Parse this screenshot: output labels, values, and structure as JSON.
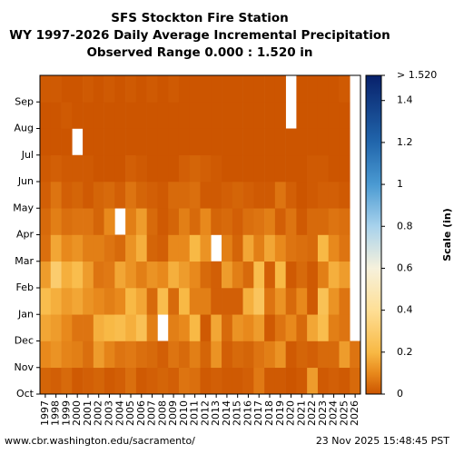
{
  "chart_data": {
    "type": "heatmap",
    "title": [
      "SFS Stockton Fire Station",
      "WY 1997-2026 Daily Average Incremental Precipitation",
      "Observed Range 0.000 : 1.520 in"
    ],
    "x": [
      1997,
      1998,
      1999,
      2000,
      2001,
      2002,
      2003,
      2004,
      2005,
      2006,
      2007,
      2008,
      2009,
      2010,
      2011,
      2012,
      2013,
      2014,
      2015,
      2016,
      2017,
      2018,
      2019,
      2020,
      2021,
      2022,
      2023,
      2024,
      2025,
      2026
    ],
    "categories": [
      "Oct",
      "Nov",
      "Dec",
      "Jan",
      "Feb",
      "Mar",
      "Apr",
      "May",
      "Jun",
      "Jul",
      "Aug",
      "Sep"
    ],
    "values": [
      [
        0.03,
        0.1,
        0.16,
        0.22,
        0.14,
        0.05,
        0.04,
        0.02,
        0.01,
        0.0,
        0.0,
        0.01
      ],
      [
        0.02,
        0.12,
        0.14,
        0.18,
        0.3,
        0.16,
        0.08,
        0.06,
        0.02,
        0.0,
        0.0,
        0.01
      ],
      [
        0.04,
        0.09,
        0.1,
        0.14,
        0.18,
        0.1,
        0.05,
        0.02,
        0.01,
        0.0,
        0.01,
        0.0
      ],
      [
        0.01,
        0.08,
        0.06,
        0.16,
        0.22,
        0.12,
        0.06,
        0.03,
        0.01,
        null,
        0.0,
        0.0
      ],
      [
        0.02,
        0.05,
        0.06,
        0.12,
        0.14,
        0.08,
        0.06,
        0.01,
        0.01,
        0.0,
        0.0,
        0.01
      ],
      [
        0.03,
        0.14,
        0.18,
        0.1,
        0.06,
        0.08,
        0.03,
        0.03,
        0.0,
        0.0,
        0.0,
        0.0
      ],
      [
        0.01,
        0.09,
        0.2,
        0.08,
        0.07,
        0.06,
        0.1,
        0.04,
        0.0,
        0.0,
        0.0,
        0.01
      ],
      [
        0.02,
        0.06,
        0.22,
        0.1,
        0.16,
        0.04,
        null,
        0.02,
        0.0,
        0.0,
        0.0,
        0.0
      ],
      [
        0.05,
        0.07,
        0.18,
        0.2,
        0.12,
        0.12,
        0.08,
        0.06,
        0.02,
        0.0,
        0.0,
        0.01
      ],
      [
        0.01,
        0.05,
        0.24,
        0.16,
        0.08,
        0.18,
        0.14,
        0.03,
        0.01,
        0.0,
        0.0,
        0.0
      ],
      [
        0.02,
        0.04,
        0.08,
        0.04,
        0.12,
        0.03,
        0.04,
        0.02,
        0.0,
        0.0,
        0.0,
        0.01
      ],
      [
        0.03,
        0.02,
        null,
        0.22,
        0.1,
        0.02,
        0.01,
        0.01,
        0.0,
        0.0,
        0.0,
        0.0
      ],
      [
        0.02,
        0.06,
        0.08,
        0.04,
        0.18,
        0.1,
        0.03,
        0.04,
        0.0,
        0.0,
        0.0,
        0.01
      ],
      [
        0.06,
        0.04,
        0.1,
        0.2,
        0.14,
        0.1,
        0.08,
        0.04,
        0.02,
        0.0,
        0.0,
        0.0
      ],
      [
        0.05,
        0.08,
        0.2,
        0.08,
        0.1,
        0.2,
        0.04,
        0.05,
        0.03,
        0.0,
        0.0,
        0.0
      ],
      [
        0.01,
        0.03,
        0.01,
        0.08,
        0.04,
        0.12,
        0.1,
        0.01,
        0.02,
        0.0,
        0.0,
        0.0
      ],
      [
        0.02,
        0.12,
        0.16,
        0.02,
        0.02,
        null,
        0.03,
        0.01,
        0.01,
        0.0,
        0.0,
        0.0
      ],
      [
        0.01,
        0.02,
        0.04,
        0.02,
        0.14,
        0.08,
        0.04,
        0.02,
        0.0,
        0.0,
        0.0,
        0.0
      ],
      [
        0.01,
        0.04,
        0.12,
        0.02,
        0.08,
        0.03,
        0.02,
        0.03,
        0.0,
        0.0,
        0.0,
        0.0
      ],
      [
        0.02,
        0.03,
        0.1,
        0.18,
        0.04,
        0.16,
        0.05,
        0.02,
        0.0,
        0.0,
        0.0,
        0.0
      ],
      [
        0.07,
        0.06,
        0.14,
        0.26,
        0.22,
        0.08,
        0.06,
        0.01,
        0.0,
        0.0,
        0.0,
        0.0
      ],
      [
        0.01,
        0.08,
        0.01,
        0.06,
        0.02,
        0.16,
        0.08,
        0.01,
        0.0,
        0.0,
        0.0,
        0.0
      ],
      [
        0.01,
        0.12,
        0.06,
        0.12,
        0.2,
        0.1,
        0.02,
        0.06,
        0.0,
        0.0,
        0.0,
        0.0
      ],
      [
        0.0,
        0.01,
        0.1,
        0.04,
        0.01,
        0.06,
        0.06,
        0.02,
        0.0,
        0.0,
        null,
        null
      ],
      [
        0.01,
        0.03,
        0.04,
        0.1,
        0.04,
        0.05,
        0.01,
        0.0,
        0.0,
        0.0,
        0.0,
        0.0
      ],
      [
        0.14,
        0.02,
        0.16,
        0.01,
        0.01,
        0.04,
        0.04,
        0.01,
        0.01,
        0.0,
        0.0,
        0.0
      ],
      [
        0.01,
        0.04,
        0.22,
        0.24,
        0.08,
        0.2,
        0.04,
        0.02,
        0.01,
        0.0,
        0.0,
        0.0
      ],
      [
        0.02,
        0.04,
        0.08,
        0.12,
        0.18,
        0.1,
        0.06,
        0.02,
        0.0,
        0.0,
        0.0,
        0.0
      ],
      [
        0.01,
        0.14,
        0.06,
        0.06,
        0.14,
        0.06,
        0.05,
        0.01,
        0.0,
        0.0,
        0.0,
        0.01
      ],
      [
        0.04,
        0.06,
        null,
        null,
        null,
        null,
        null,
        null,
        null,
        null,
        null,
        null
      ]
    ],
    "zlim": [
      0,
      1.52
    ],
    "zticks": [
      0,
      0.2,
      0.4,
      0.6,
      0.8,
      1.0,
      1.2,
      1.4
    ],
    "zmax_label": "> 1.520",
    "zlabel": "Scale (in)",
    "colorscale": [
      [
        0,
        "#cc5500"
      ],
      [
        0.1,
        "#e8891c"
      ],
      [
        0.2,
        "#f8b945"
      ],
      [
        0.4,
        "#fedf96"
      ],
      [
        0.6,
        "#f6f1dc"
      ],
      [
        0.8,
        "#a8d2ec"
      ],
      [
        1.0,
        "#4a9ad2"
      ],
      [
        1.2,
        "#2166ac"
      ],
      [
        1.52,
        "#08216b"
      ]
    ],
    "footer_left": "www.cbr.washington.edu/sacramento/",
    "footer_right": "23 Nov 2025 15:48:45 PST"
  }
}
